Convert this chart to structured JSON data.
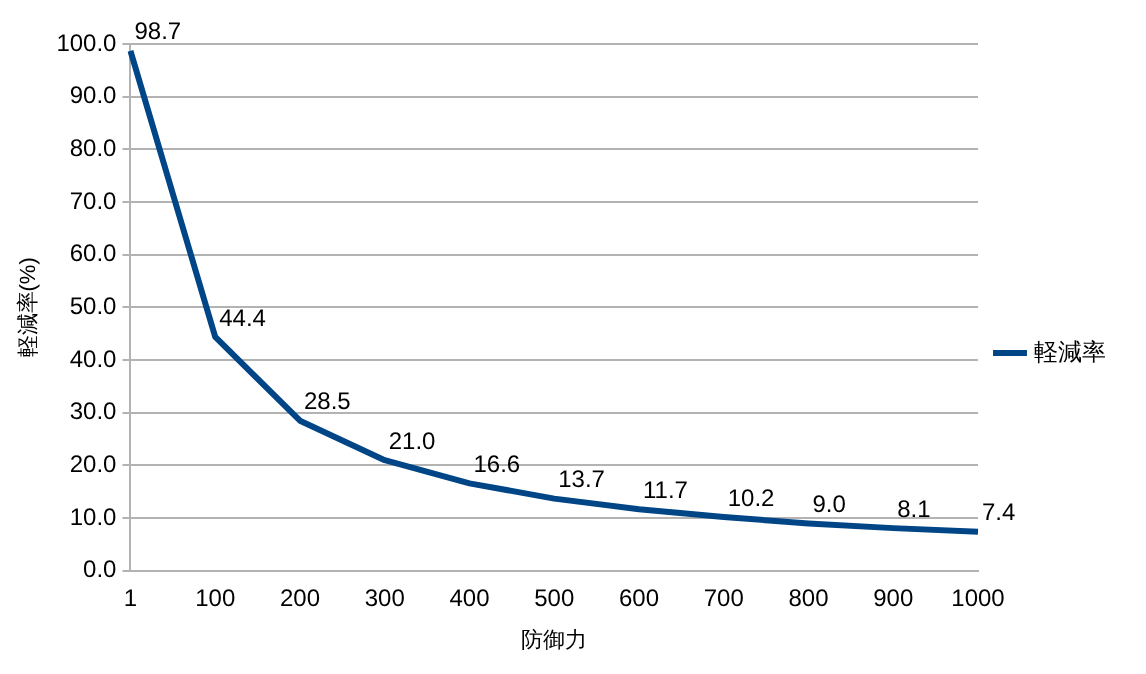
{
  "chart_data": {
    "type": "line",
    "xlabel": "防御力",
    "ylabel": "軽減率(%)",
    "categories": [
      "1",
      "100",
      "200",
      "300",
      "400",
      "500",
      "600",
      "700",
      "800",
      "900",
      "1000"
    ],
    "series": [
      {
        "name": "軽減率",
        "color": "#004586",
        "values": [
          98.7,
          44.4,
          28.5,
          21.0,
          16.6,
          13.7,
          11.7,
          10.2,
          9.0,
          8.1,
          7.4
        ],
        "value_labels": [
          "98.7",
          "44.4",
          "28.5",
          "21.0",
          "16.6",
          "13.7",
          "11.7",
          "10.2",
          "9.0",
          "8.1",
          "7.4"
        ]
      }
    ],
    "ylim": [
      0,
      100
    ],
    "yticks": [
      {
        "value": 0,
        "label": "0.0"
      },
      {
        "value": 10,
        "label": "10.0"
      },
      {
        "value": 20,
        "label": "20.0"
      },
      {
        "value": 30,
        "label": "30.0"
      },
      {
        "value": 40,
        "label": "40.0"
      },
      {
        "value": 50,
        "label": "50.0"
      },
      {
        "value": 60,
        "label": "60.0"
      },
      {
        "value": 70,
        "label": "70.0"
      },
      {
        "value": 80,
        "label": "80.0"
      },
      {
        "value": 90,
        "label": "90.0"
      },
      {
        "value": 100,
        "label": "100.0"
      }
    ],
    "grid": "y",
    "legend": "right",
    "marker": "none",
    "line_style": "solid"
  }
}
